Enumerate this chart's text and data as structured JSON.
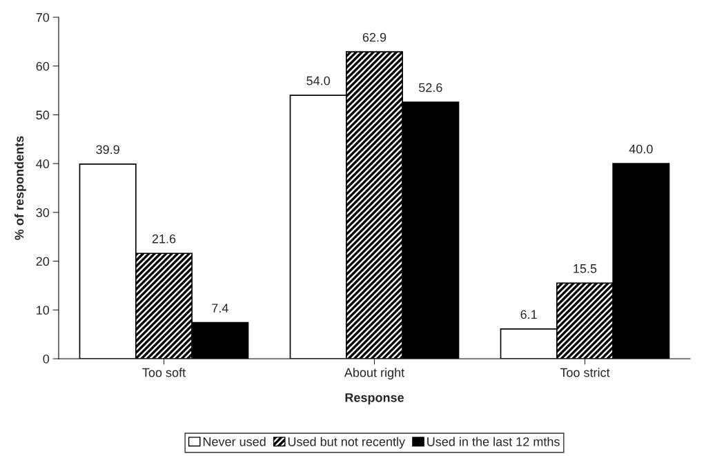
{
  "chart_data": {
    "type": "bar",
    "xlabel": "Response",
    "ylabel": "% of respondents",
    "categories": [
      "Too soft",
      "About right",
      "Too strict"
    ],
    "series": [
      {
        "name": "Never used",
        "color": "#ffffff",
        "values": [
          39.9,
          54.0,
          6.1
        ]
      },
      {
        "name": "Used but not recently",
        "color": "#000000",
        "values": [
          21.6,
          62.9,
          15.5
        ]
      },
      {
        "name": "Used in the last 12 mths",
        "color": "#000000",
        "values": [
          7.4,
          52.6,
          40.0
        ]
      }
    ],
    "value_labels": [
      [
        "39.9",
        "54.0",
        "6.1"
      ],
      [
        "21.6",
        "62.9",
        "15.5"
      ],
      [
        "7.4",
        "52.6",
        "40.0"
      ]
    ],
    "ylim": [
      0,
      70
    ],
    "yticks": [
      0,
      10,
      20,
      30,
      40,
      50,
      60,
      70
    ],
    "grid": false,
    "legend": "bottom"
  }
}
